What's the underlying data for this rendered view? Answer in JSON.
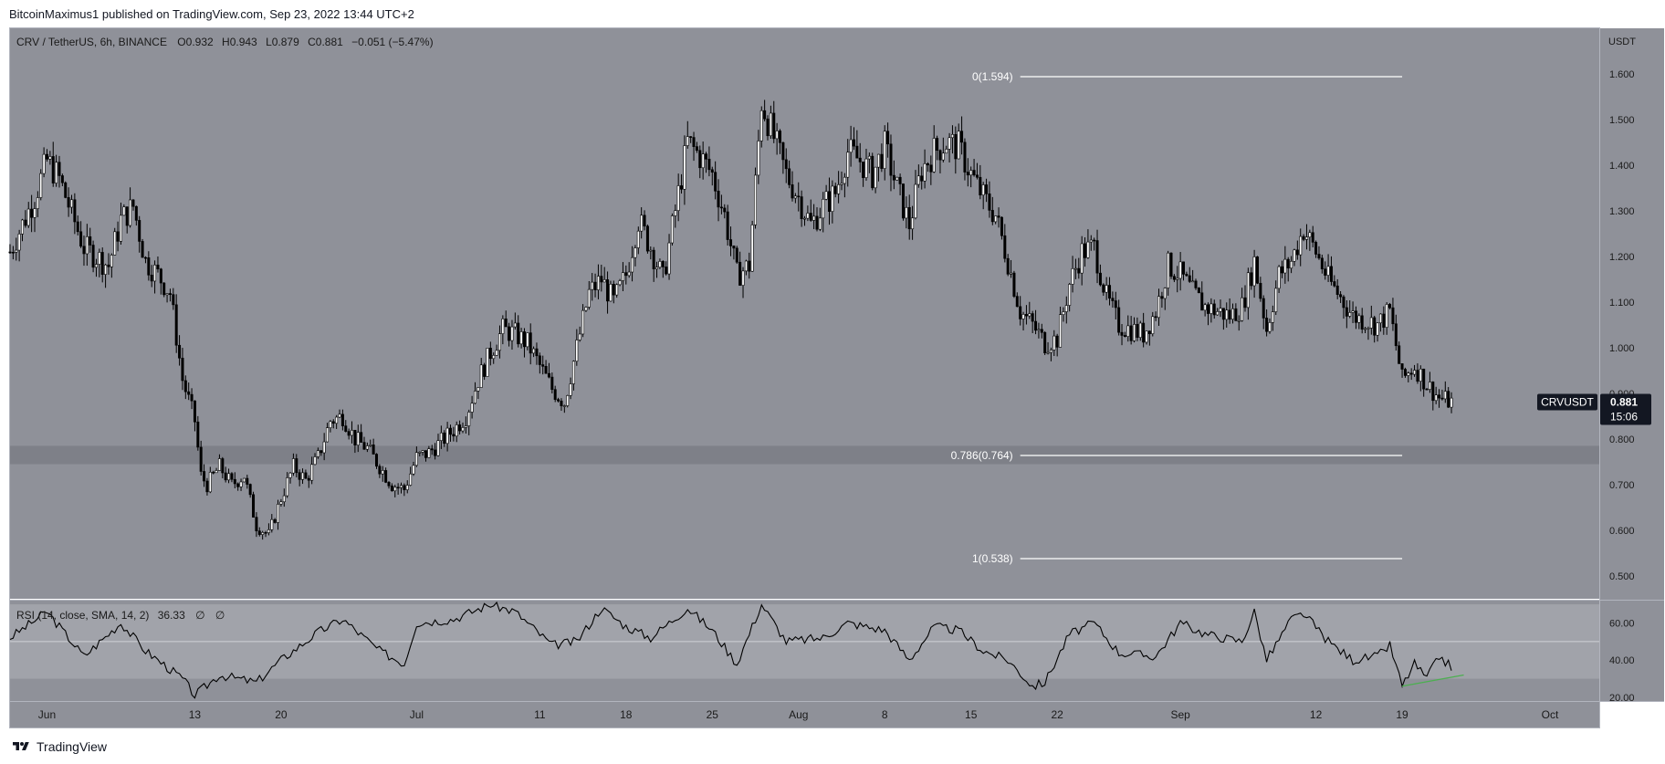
{
  "header": {
    "published_by": "BitcoinMaximus1 published on TradingView.com, Sep 23, 2022 13:44 UTC+2"
  },
  "footer": {
    "brand": "TradingView"
  },
  "legend": {
    "symbol": "CRV / TetherUS, 6h, BINANCE",
    "o_label": "O",
    "o": "0.932",
    "h_label": "H",
    "h": "0.943",
    "l_label": "L",
    "l": "0.879",
    "c_label": "C",
    "c": "0.881",
    "change": "−0.051 (−5.47%)"
  },
  "price_axis": {
    "currency": "USDT",
    "ticks": [
      "1.600",
      "1.500",
      "1.400",
      "1.300",
      "1.200",
      "1.100",
      "1.000",
      "0.900",
      "0.800",
      "0.700",
      "0.600",
      "0.500"
    ]
  },
  "price_tag": {
    "symbol": "CRVUSDT",
    "price": "0.881",
    "countdown": "15:06"
  },
  "time_axis": {
    "labels": [
      "Jun",
      "13",
      "20",
      "Jul",
      "11",
      "18",
      "25",
      "Aug",
      "8",
      "15",
      "22",
      "Sep",
      "12",
      "19",
      "Oct"
    ]
  },
  "rsi": {
    "legend_name": "RSI (14, close, SMA, 14, 2)",
    "legend_value": "36.33",
    "legend_na1": "∅",
    "legend_na2": "∅",
    "ticks": [
      "60.00",
      "40.00",
      "20.00"
    ]
  },
  "colors": {
    "chart_bg": "#8f9199",
    "rsi_band": "#a1a3aa",
    "support_zone": "#7b7d85",
    "fib_line": "#ffffff",
    "candle": "#000000",
    "divergence": "#4caf50",
    "tag_bg": "#131722"
  },
  "chart_data": {
    "type": "candlestick",
    "title": "CRV / TetherUS, 6h, BINANCE",
    "interval": "6h",
    "x_range": [
      "2022-05-29",
      "2022-10-05"
    ],
    "ylim": [
      0.45,
      1.7
    ],
    "y_ticks": [
      0.5,
      0.6,
      0.7,
      0.8,
      0.9,
      1.0,
      1.1,
      1.2,
      1.3,
      1.4,
      1.5,
      1.6
    ],
    "close_path": [
      {
        "date": "2022-05-29",
        "close": 1.21
      },
      {
        "date": "2022-05-31",
        "close": 1.33
      },
      {
        "date": "2022-06-01",
        "close": 1.41
      },
      {
        "date": "2022-06-02",
        "close": 1.37
      },
      {
        "date": "2022-06-04",
        "close": 1.22
      },
      {
        "date": "2022-06-06",
        "close": 1.18
      },
      {
        "date": "2022-06-07",
        "close": 1.28
      },
      {
        "date": "2022-06-08",
        "close": 1.31
      },
      {
        "date": "2022-06-09",
        "close": 1.19
      },
      {
        "date": "2022-06-10",
        "close": 1.16
      },
      {
        "date": "2022-06-11",
        "close": 1.12
      },
      {
        "date": "2022-06-12",
        "close": 0.93
      },
      {
        "date": "2022-06-13",
        "close": 0.84
      },
      {
        "date": "2022-06-13T12:00",
        "close": 0.72
      },
      {
        "date": "2022-06-14",
        "close": 0.7
      },
      {
        "date": "2022-06-15",
        "close": 0.74
      },
      {
        "date": "2022-06-16",
        "close": 0.7
      },
      {
        "date": "2022-06-17",
        "close": 0.72
      },
      {
        "date": "2022-06-18",
        "close": 0.61
      },
      {
        "date": "2022-06-19",
        "close": 0.59
      },
      {
        "date": "2022-06-20",
        "close": 0.67
      },
      {
        "date": "2022-06-21",
        "close": 0.74
      },
      {
        "date": "2022-06-22",
        "close": 0.71
      },
      {
        "date": "2022-06-23",
        "close": 0.76
      },
      {
        "date": "2022-06-24",
        "close": 0.84
      },
      {
        "date": "2022-06-25",
        "close": 0.85
      },
      {
        "date": "2022-06-26",
        "close": 0.8
      },
      {
        "date": "2022-06-27",
        "close": 0.78
      },
      {
        "date": "2022-06-28",
        "close": 0.74
      },
      {
        "date": "2022-06-29",
        "close": 0.7
      },
      {
        "date": "2022-06-30",
        "close": 0.69
      },
      {
        "date": "2022-07-01",
        "close": 0.76
      },
      {
        "date": "2022-07-02",
        "close": 0.77
      },
      {
        "date": "2022-07-04",
        "close": 0.82
      },
      {
        "date": "2022-07-05",
        "close": 0.85
      },
      {
        "date": "2022-07-06",
        "close": 0.93
      },
      {
        "date": "2022-07-07",
        "close": 0.99
      },
      {
        "date": "2022-07-08",
        "close": 1.04
      },
      {
        "date": "2022-07-09",
        "close": 1.03
      },
      {
        "date": "2022-07-10",
        "close": 1.01
      },
      {
        "date": "2022-07-11",
        "close": 0.96
      },
      {
        "date": "2022-07-12",
        "close": 0.91
      },
      {
        "date": "2022-07-13",
        "close": 0.88
      },
      {
        "date": "2022-07-14",
        "close": 1.0
      },
      {
        "date": "2022-07-15",
        "close": 1.12
      },
      {
        "date": "2022-07-16",
        "close": 1.15
      },
      {
        "date": "2022-07-17",
        "close": 1.1
      },
      {
        "date": "2022-07-18",
        "close": 1.16
      },
      {
        "date": "2022-07-19",
        "close": 1.28
      },
      {
        "date": "2022-07-20",
        "close": 1.22
      },
      {
        "date": "2022-07-21",
        "close": 1.15
      },
      {
        "date": "2022-07-22",
        "close": 1.3
      },
      {
        "date": "2022-07-23",
        "close": 1.45
      },
      {
        "date": "2022-07-24",
        "close": 1.42
      },
      {
        "date": "2022-07-25",
        "close": 1.38
      },
      {
        "date": "2022-07-26",
        "close": 1.29
      },
      {
        "date": "2022-07-27",
        "close": 1.16
      },
      {
        "date": "2022-07-28",
        "close": 1.18
      },
      {
        "date": "2022-07-29",
        "close": 1.54
      },
      {
        "date": "2022-07-30",
        "close": 1.46
      },
      {
        "date": "2022-07-31",
        "close": 1.38
      },
      {
        "date": "2022-08-01",
        "close": 1.33
      },
      {
        "date": "2022-08-02",
        "close": 1.27
      },
      {
        "date": "2022-08-03",
        "close": 1.31
      },
      {
        "date": "2022-08-04",
        "close": 1.34
      },
      {
        "date": "2022-08-05",
        "close": 1.43
      },
      {
        "date": "2022-08-06",
        "close": 1.41
      },
      {
        "date": "2022-08-07",
        "close": 1.38
      },
      {
        "date": "2022-08-08",
        "close": 1.44
      },
      {
        "date": "2022-08-09",
        "close": 1.35
      },
      {
        "date": "2022-08-10",
        "close": 1.27
      },
      {
        "date": "2022-08-11",
        "close": 1.39
      },
      {
        "date": "2022-08-12",
        "close": 1.43
      },
      {
        "date": "2022-08-13",
        "close": 1.45
      },
      {
        "date": "2022-08-14",
        "close": 1.44
      },
      {
        "date": "2022-08-15",
        "close": 1.38
      },
      {
        "date": "2022-08-16",
        "close": 1.33
      },
      {
        "date": "2022-08-17",
        "close": 1.29
      },
      {
        "date": "2022-08-18",
        "close": 1.19
      },
      {
        "date": "2022-08-19",
        "close": 1.08
      },
      {
        "date": "2022-08-20",
        "close": 1.05
      },
      {
        "date": "2022-08-21",
        "close": 1.01
      },
      {
        "date": "2022-08-22",
        "close": 1.02
      },
      {
        "date": "2022-08-23",
        "close": 1.14
      },
      {
        "date": "2022-08-24",
        "close": 1.21
      },
      {
        "date": "2022-08-25",
        "close": 1.22
      },
      {
        "date": "2022-08-26",
        "close": 1.11
      },
      {
        "date": "2022-08-27",
        "close": 1.05
      },
      {
        "date": "2022-08-28",
        "close": 1.04
      },
      {
        "date": "2022-08-29",
        "close": 1.03
      },
      {
        "date": "2022-08-30",
        "close": 1.08
      },
      {
        "date": "2022-08-31",
        "close": 1.18
      },
      {
        "date": "2022-09-01",
        "close": 1.16
      },
      {
        "date": "2022-09-02",
        "close": 1.12
      },
      {
        "date": "2022-09-03",
        "close": 1.09
      },
      {
        "date": "2022-09-04",
        "close": 1.08
      },
      {
        "date": "2022-09-05",
        "close": 1.07
      },
      {
        "date": "2022-09-06",
        "close": 1.09
      },
      {
        "date": "2022-09-07",
        "close": 1.19
      },
      {
        "date": "2022-09-08",
        "close": 1.04
      },
      {
        "date": "2022-09-09",
        "close": 1.16
      },
      {
        "date": "2022-09-10",
        "close": 1.19
      },
      {
        "date": "2022-09-11",
        "close": 1.26
      },
      {
        "date": "2022-09-12",
        "close": 1.21
      },
      {
        "date": "2022-09-13",
        "close": 1.15
      },
      {
        "date": "2022-09-14",
        "close": 1.11
      },
      {
        "date": "2022-09-15",
        "close": 1.07
      },
      {
        "date": "2022-09-16",
        "close": 1.06
      },
      {
        "date": "2022-09-17",
        "close": 1.05
      },
      {
        "date": "2022-09-18",
        "close": 1.08
      },
      {
        "date": "2022-09-19",
        "close": 0.93
      },
      {
        "date": "2022-09-20",
        "close": 0.96
      },
      {
        "date": "2022-09-21",
        "close": 0.92
      },
      {
        "date": "2022-09-22",
        "close": 0.89
      },
      {
        "date": "2022-09-23",
        "close": 0.881
      }
    ],
    "support_zone": {
      "low": 0.745,
      "high": 0.785
    },
    "fibonacci": [
      {
        "level": "0",
        "price": 1.594,
        "label": "0(1.594)"
      },
      {
        "level": "0.786",
        "price": 0.764,
        "label": "0.786(0.764)"
      },
      {
        "level": "1",
        "price": 0.538,
        "label": "1(0.538)"
      }
    ],
    "fib_date_range": [
      "2022-08-19",
      "2022-09-19"
    ],
    "last_price": 0.881,
    "rsi": {
      "ylim": [
        18,
        72
      ],
      "band": [
        30,
        70
      ],
      "midline": 50,
      "last": 36.33,
      "path": [
        {
          "date": "2022-05-29",
          "value": 52
        },
        {
          "date": "2022-06-01",
          "value": 66
        },
        {
          "date": "2022-06-04",
          "value": 42
        },
        {
          "date": "2022-06-07",
          "value": 60
        },
        {
          "date": "2022-06-09",
          "value": 45
        },
        {
          "date": "2022-06-12",
          "value": 30
        },
        {
          "date": "2022-06-13",
          "value": 21
        },
        {
          "date": "2022-06-15",
          "value": 32
        },
        {
          "date": "2022-06-18",
          "value": 28
        },
        {
          "date": "2022-06-20",
          "value": 40
        },
        {
          "date": "2022-06-23",
          "value": 55
        },
        {
          "date": "2022-06-25",
          "value": 62
        },
        {
          "date": "2022-06-28",
          "value": 45
        },
        {
          "date": "2022-06-30",
          "value": 38
        },
        {
          "date": "2022-07-01",
          "value": 60
        },
        {
          "date": "2022-07-04",
          "value": 62
        },
        {
          "date": "2022-07-07",
          "value": 70
        },
        {
          "date": "2022-07-09",
          "value": 66
        },
        {
          "date": "2022-07-12",
          "value": 48
        },
        {
          "date": "2022-07-14",
          "value": 50
        },
        {
          "date": "2022-07-16",
          "value": 68
        },
        {
          "date": "2022-07-18",
          "value": 58
        },
        {
          "date": "2022-07-20",
          "value": 52
        },
        {
          "date": "2022-07-23",
          "value": 68
        },
        {
          "date": "2022-07-25",
          "value": 56
        },
        {
          "date": "2022-07-27",
          "value": 38
        },
        {
          "date": "2022-07-29",
          "value": 70
        },
        {
          "date": "2022-07-31",
          "value": 50
        },
        {
          "date": "2022-08-03",
          "value": 52
        },
        {
          "date": "2022-08-05",
          "value": 60
        },
        {
          "date": "2022-08-08",
          "value": 56
        },
        {
          "date": "2022-08-10",
          "value": 40
        },
        {
          "date": "2022-08-12",
          "value": 58
        },
        {
          "date": "2022-08-14",
          "value": 56
        },
        {
          "date": "2022-08-16",
          "value": 45
        },
        {
          "date": "2022-08-18",
          "value": 40
        },
        {
          "date": "2022-08-20",
          "value": 26
        },
        {
          "date": "2022-08-21",
          "value": 28
        },
        {
          "date": "2022-08-23",
          "value": 54
        },
        {
          "date": "2022-08-25",
          "value": 60
        },
        {
          "date": "2022-08-27",
          "value": 44
        },
        {
          "date": "2022-08-30",
          "value": 42
        },
        {
          "date": "2022-09-01",
          "value": 60
        },
        {
          "date": "2022-09-03",
          "value": 54
        },
        {
          "date": "2022-09-06",
          "value": 50
        },
        {
          "date": "2022-09-07",
          "value": 66
        },
        {
          "date": "2022-09-08",
          "value": 40
        },
        {
          "date": "2022-09-10",
          "value": 62
        },
        {
          "date": "2022-09-11",
          "value": 65
        },
        {
          "date": "2022-09-13",
          "value": 50
        },
        {
          "date": "2022-09-15",
          "value": 40
        },
        {
          "date": "2022-09-17",
          "value": 42
        },
        {
          "date": "2022-09-18",
          "value": 48
        },
        {
          "date": "2022-09-19",
          "value": 26
        },
        {
          "date": "2022-09-20",
          "value": 38
        },
        {
          "date": "2022-09-21",
          "value": 30
        },
        {
          "date": "2022-09-22",
          "value": 42
        },
        {
          "date": "2022-09-23",
          "value": 36.33
        }
      ],
      "divergence_line": [
        {
          "date": "2022-09-19",
          "value": 26
        },
        {
          "date": "2022-09-24",
          "value": 32
        }
      ]
    }
  }
}
